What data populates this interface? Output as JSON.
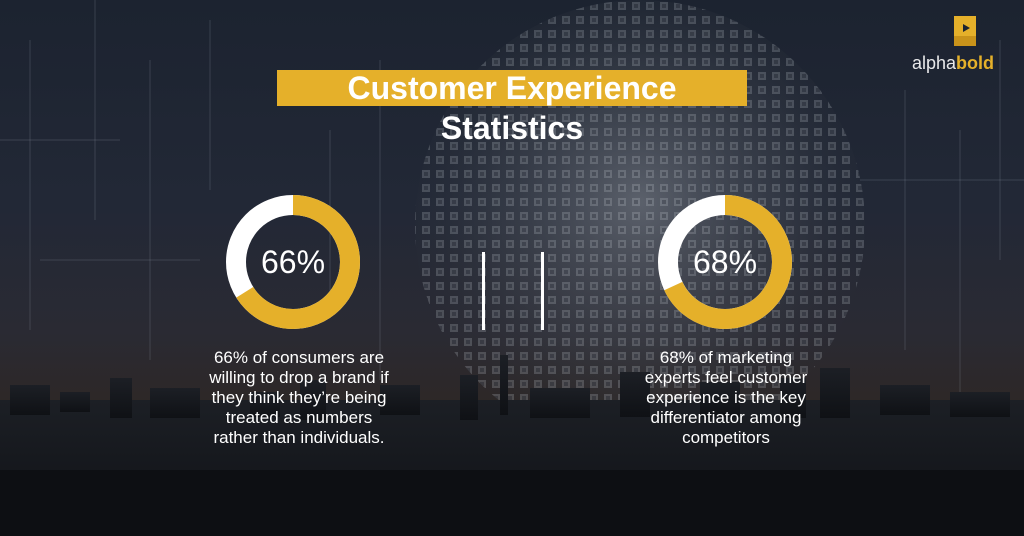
{
  "logo": {
    "text_alpha": "alpha",
    "text_bold": "bold"
  },
  "title": {
    "line1": "Customer Experience",
    "line2": "Statistics"
  },
  "stats": [
    {
      "percent": "66%",
      "value": 0.66,
      "description": "66% of consumers are willing to drop a brand if they think they’re being treated as numbers rather than individuals."
    },
    {
      "percent": "68%",
      "value": 0.68,
      "description": "68% of marketing experts feel customer experience is the key differentiator among competitors"
    }
  ],
  "colors": {
    "accent": "#e5b02a",
    "ring_track": "#ffffff",
    "text": "#ffffff"
  }
}
